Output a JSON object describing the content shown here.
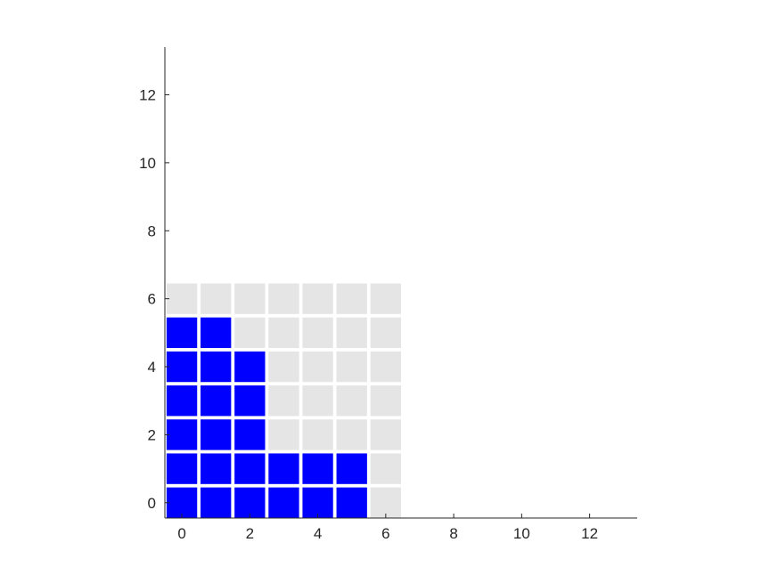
{
  "chart_data": {
    "type": "heatmap",
    "title": "",
    "xlabel": "",
    "ylabel": "",
    "xlim": [
      -0.5,
      13.4
    ],
    "ylim": [
      -0.45,
      13.4
    ],
    "xticks": [
      0,
      2,
      4,
      6,
      8,
      10,
      12
    ],
    "yticks": [
      0,
      2,
      4,
      6,
      8,
      10,
      12
    ],
    "grid": false,
    "cell_size": 0.9,
    "filled_color": "#0000ff",
    "empty_color": "#e5e5e5",
    "axis_color": "#262626",
    "rows_note_order": "y from 0 to 6",
    "cells": [
      {
        "y": 0,
        "filled_x": [
          0,
          1,
          2,
          3,
          4,
          5
        ],
        "empty_x": [
          6
        ]
      },
      {
        "y": 1,
        "filled_x": [
          0,
          1,
          2,
          3,
          4,
          5
        ],
        "empty_x": [
          6
        ]
      },
      {
        "y": 2,
        "filled_x": [
          0,
          1,
          2
        ],
        "empty_x": [
          3,
          4,
          5,
          6
        ]
      },
      {
        "y": 3,
        "filled_x": [
          0,
          1,
          2
        ],
        "empty_x": [
          3,
          4,
          5,
          6
        ]
      },
      {
        "y": 4,
        "filled_x": [
          0,
          1,
          2
        ],
        "empty_x": [
          3,
          4,
          5,
          6
        ]
      },
      {
        "y": 5,
        "filled_x": [
          0,
          1
        ],
        "empty_x": [
          2,
          3,
          4,
          5,
          6
        ]
      },
      {
        "y": 6,
        "filled_x": [],
        "empty_x": [
          0,
          1,
          2,
          3,
          4,
          5,
          6
        ]
      }
    ]
  }
}
